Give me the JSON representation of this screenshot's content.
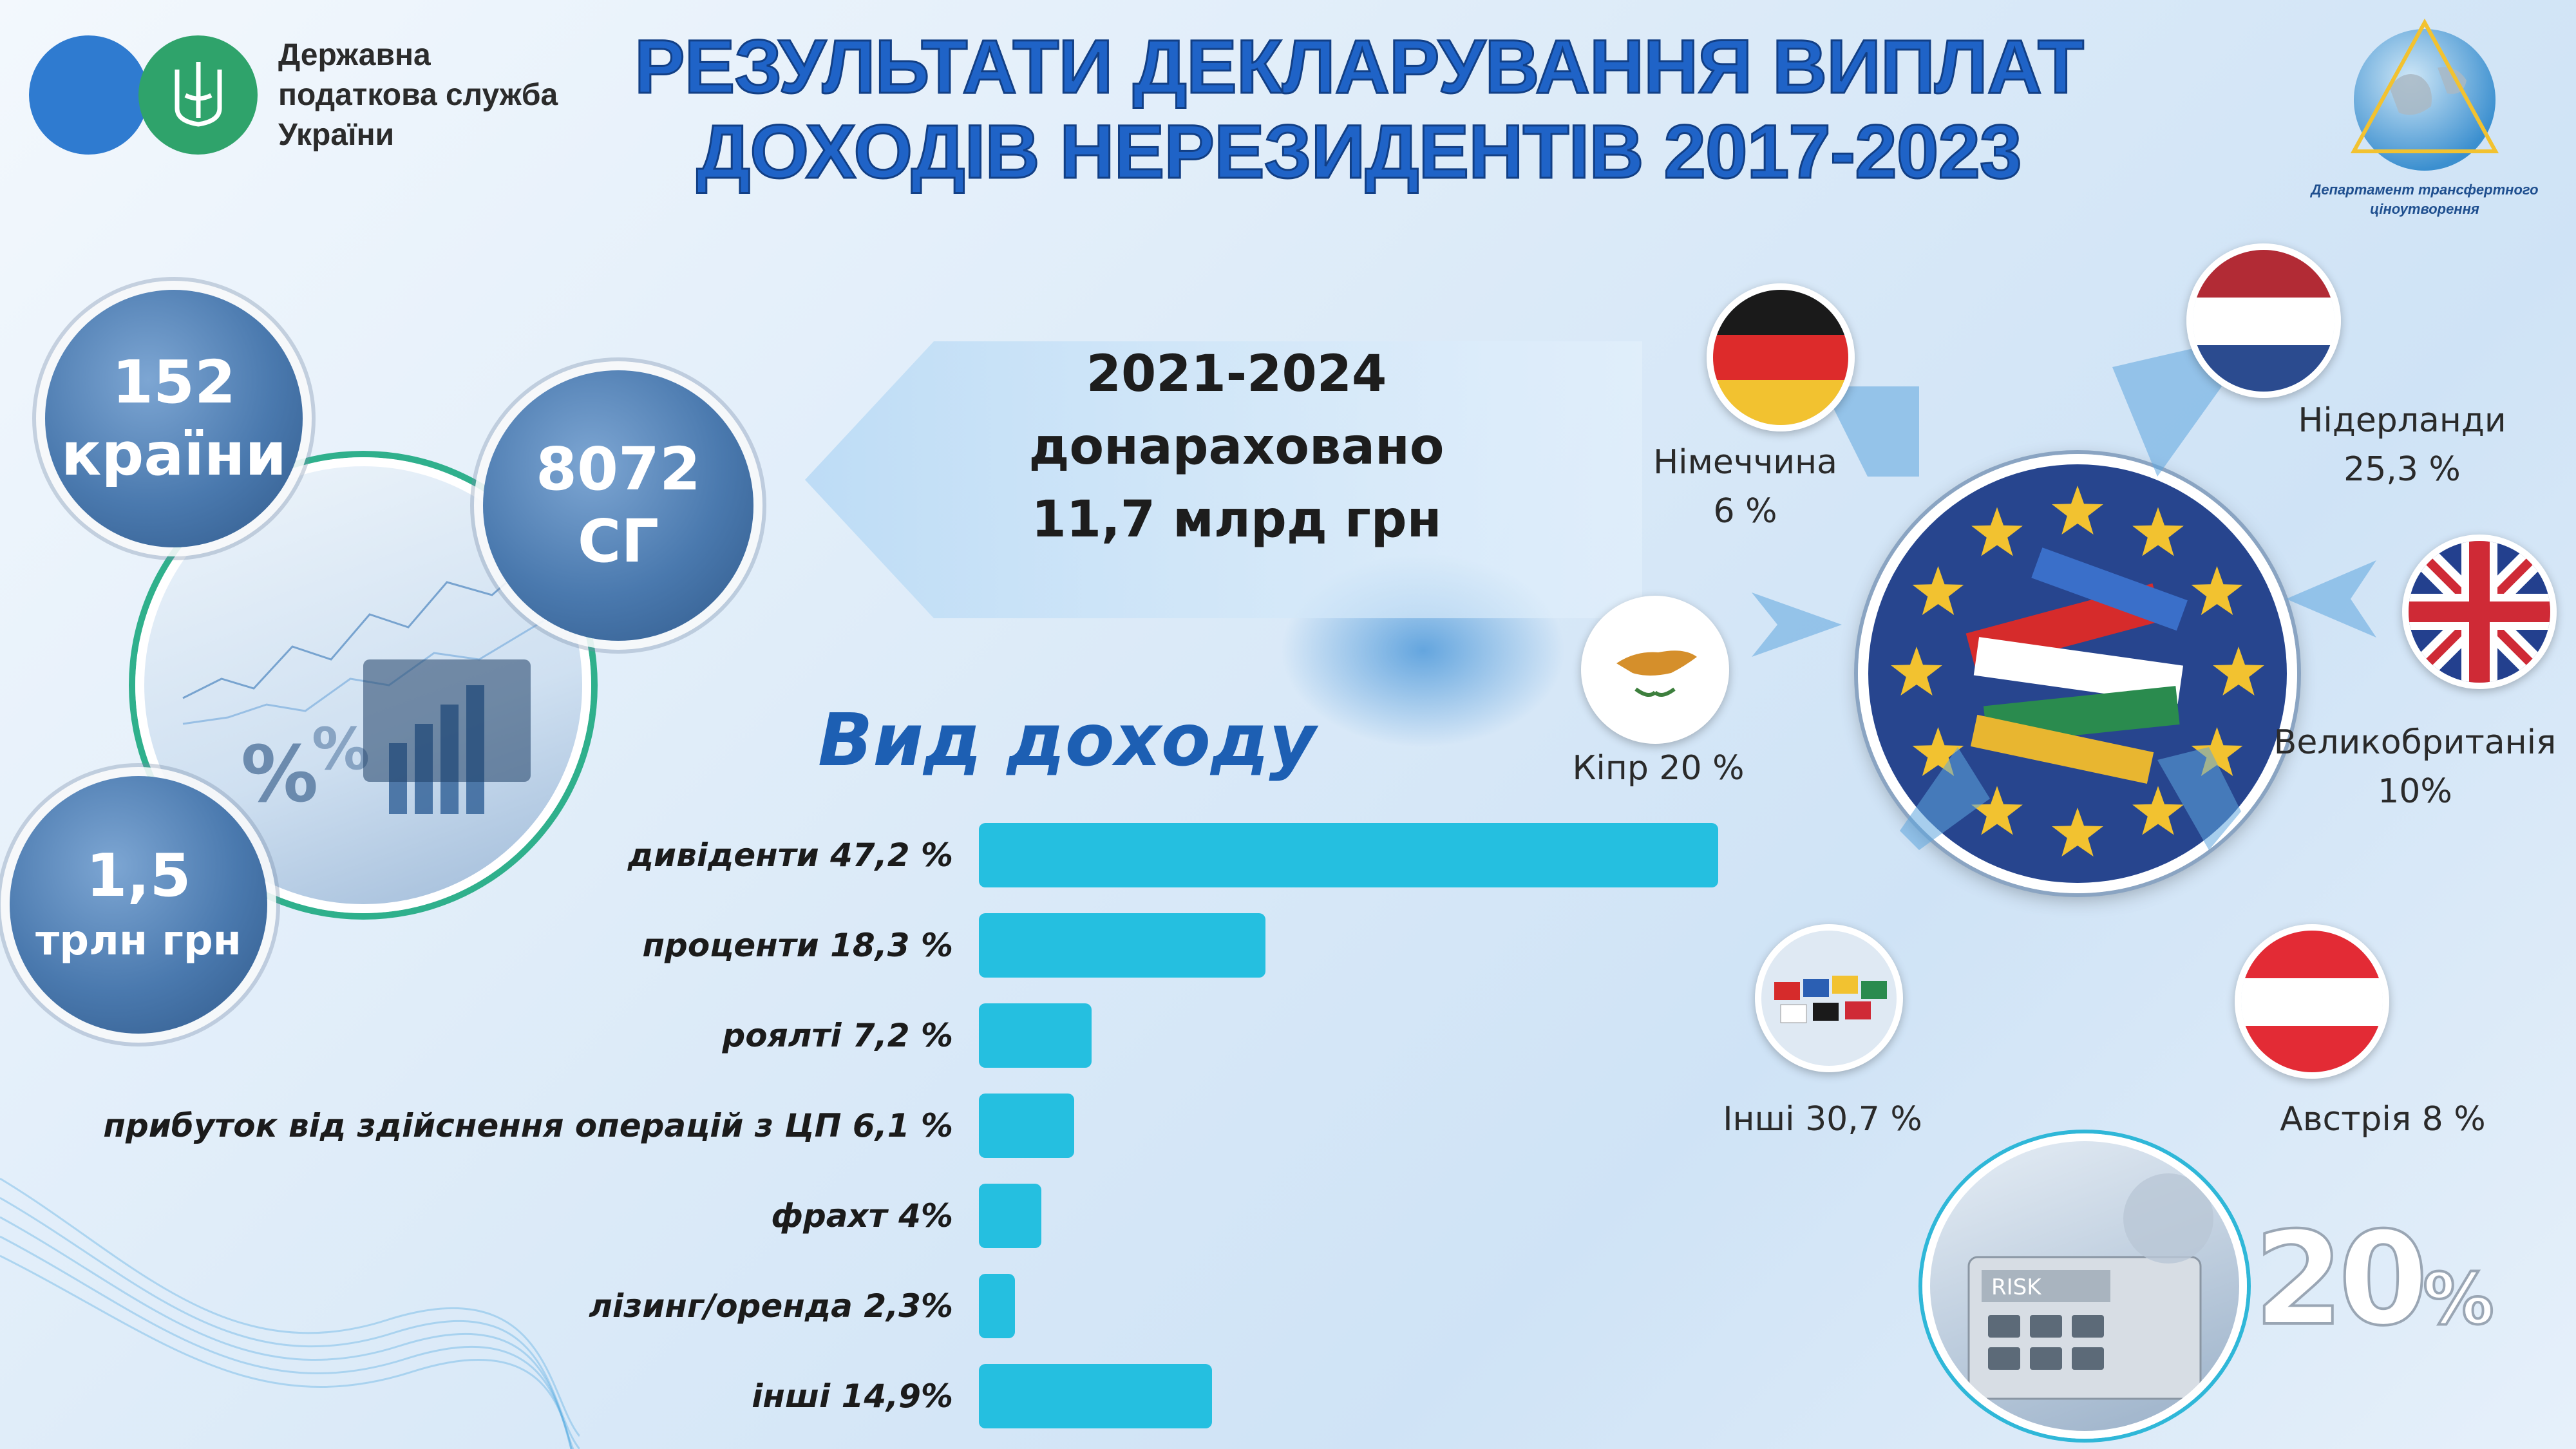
{
  "header": {
    "org_name": "Державна податкова служба України",
    "title_line1": "РЕЗУЛЬТАТИ ДЕКЛАРУВАННЯ ВИПЛАТ",
    "title_line2": "ДОХОДІВ НЕРЕЗИДЕНТІВ 2017-2023",
    "dept_name": "Департамент трансфертного ціноутворення",
    "colors": {
      "title": "#1f63c7",
      "logo_blue": "#2f7bd0",
      "logo_green": "#2fa36b"
    }
  },
  "stats": {
    "countries": {
      "value": "152",
      "label": "країни"
    },
    "sg": {
      "value": "8072",
      "label": "СГ"
    },
    "trln": {
      "value": "1,5",
      "label": "трлн грн"
    }
  },
  "banner": {
    "period": "2021-2024",
    "caption": "донараховано",
    "amount": "11,7 млрд грн"
  },
  "chart_data": {
    "type": "bar",
    "orientation": "horizontal",
    "title": "Вид доходу",
    "categories": [
      "дивіденти 47,2 %",
      "проценти 18,3 %",
      "роялті 7,2 %",
      "прибуток від здійснення операцій з ЦП 6,1 %",
      "фрахт 4%",
      "лізинг/оренда 2,3%",
      "інші 14,9%"
    ],
    "values": [
      47.2,
      18.3,
      7.2,
      6.1,
      4,
      2.3,
      14.9
    ],
    "color": "#25bfe0"
  },
  "countries": [
    {
      "key": "germany",
      "label": "Німеччина",
      "pct": "6 %",
      "icon": "germany-flag-icon"
    },
    {
      "key": "netherlands",
      "label": "Нідерланди",
      "pct": "25,3 %",
      "icon": "netherlands-flag-icon"
    },
    {
      "key": "cyprus",
      "label": "Кіпр 20 %",
      "pct": "",
      "icon": "cyprus-flag-icon"
    },
    {
      "key": "uk",
      "label": "Великобританія",
      "pct": "10%",
      "icon": "uk-flag-icon"
    },
    {
      "key": "others",
      "label": "Інші 30,7 %",
      "pct": "",
      "icon": "world-flags-icon"
    },
    {
      "key": "austria",
      "label": "Австрія 8 %",
      "pct": "",
      "icon": "austria-flag-icon"
    }
  ],
  "decor": {
    "risk_label": "RISK",
    "percent_badge": "20",
    "percent_sign": "%"
  }
}
